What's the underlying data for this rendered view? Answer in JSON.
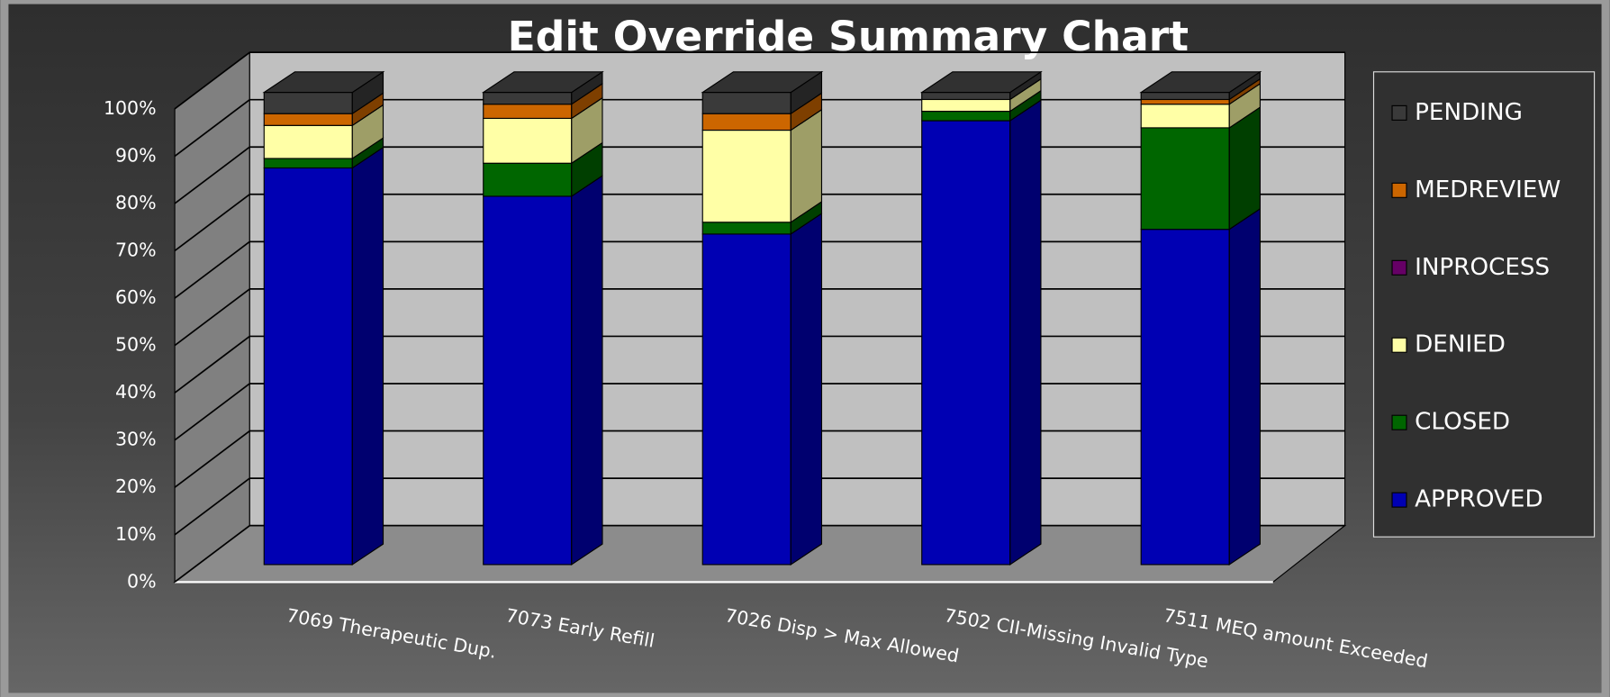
{
  "chart_data": {
    "type": "bar3d_stacked",
    "title": "Edit Override Summary Chart",
    "categories": [
      "7069 Therapeutic Dup.",
      "7073 Early Refill",
      "7026 Disp > Max Allowed",
      "7502 CII-Missing Invalid Type",
      "7511 MEQ amount Exceeded"
    ],
    "series": [
      {
        "name": "APPROVED",
        "color": "#0000b3",
        "values": [
          84,
          78,
          70,
          94,
          71
        ]
      },
      {
        "name": "CLOSED",
        "color": "#006600",
        "values": [
          2,
          7,
          2.5,
          2,
          21.5
        ]
      },
      {
        "name": "DENIED",
        "color": "#ffffa6",
        "values": [
          7,
          9.5,
          19.5,
          2.5,
          5
        ]
      },
      {
        "name": "INPROCESS",
        "color": "#660066",
        "values": [
          0,
          0,
          0,
          0,
          0
        ]
      },
      {
        "name": "MEDREVIEW",
        "color": "#cc6600",
        "values": [
          2.5,
          3,
          3.5,
          0,
          1
        ]
      },
      {
        "name": "PENDING",
        "color": "#3a3a3a",
        "values": [
          4.5,
          2.5,
          4.5,
          1.5,
          1.5
        ]
      }
    ],
    "ylim": [
      0,
      100
    ],
    "yticks": [
      {
        "value": 0,
        "label": "0%"
      },
      {
        "value": 10,
        "label": "10%"
      },
      {
        "value": 20,
        "label": "20%"
      },
      {
        "value": 30,
        "label": "30%"
      },
      {
        "value": 40,
        "label": "40%"
      },
      {
        "value": 50,
        "label": "50%"
      },
      {
        "value": 60,
        "label": "60%"
      },
      {
        "value": 70,
        "label": "70%"
      },
      {
        "value": 80,
        "label": "80%"
      },
      {
        "value": 90,
        "label": "90%"
      },
      {
        "value": 100,
        "label": "100%"
      }
    ],
    "grid": true,
    "legend": "right"
  }
}
